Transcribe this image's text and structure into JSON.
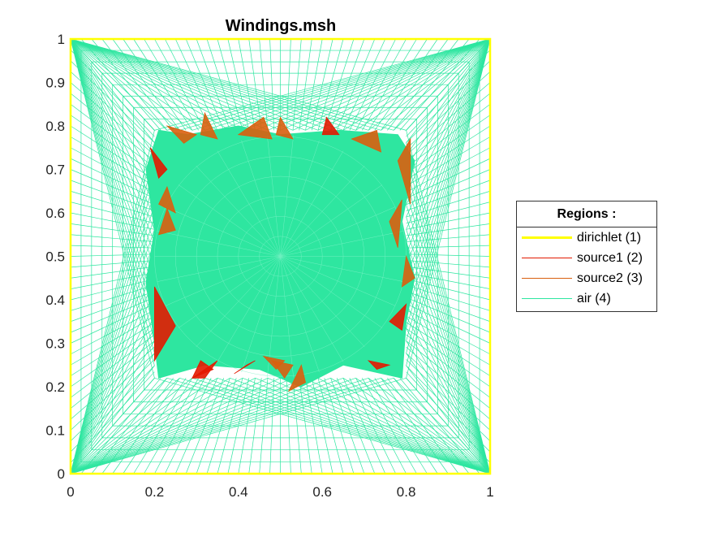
{
  "chart_data": {
    "type": "mesh",
    "title": "Windings.msh",
    "xlim": [
      0,
      1
    ],
    "ylim": [
      0,
      1
    ],
    "x_ticks": [
      "0",
      "0.2",
      "0.4",
      "0.6",
      "0.8",
      "1"
    ],
    "y_ticks": [
      "0",
      "0.1",
      "0.2",
      "0.3",
      "0.4",
      "0.5",
      "0.6",
      "0.7",
      "0.8",
      "0.9",
      "1"
    ],
    "legend": {
      "title": "Regions :",
      "placement": "right",
      "items": [
        {
          "label": "dirichlet (1)",
          "color": "#ffff00"
        },
        {
          "label": "source1 (2)",
          "color": "#e31a00"
        },
        {
          "label": "source2 (3)",
          "color": "#d95f0e"
        },
        {
          "label": "air (4)",
          "color": "#2ee6a0"
        }
      ]
    },
    "regions": {
      "dirichlet": {
        "color": "#ffff00",
        "boundary": [
          [
            0,
            0
          ],
          [
            1,
            0
          ],
          [
            1,
            1
          ],
          [
            0,
            1
          ]
        ]
      },
      "inner_block": {
        "color": "#2ee6a0",
        "polygon": [
          [
            0.21,
            0.22
          ],
          [
            0.32,
            0.25
          ],
          [
            0.45,
            0.24
          ],
          [
            0.55,
            0.2
          ],
          [
            0.65,
            0.25
          ],
          [
            0.79,
            0.22
          ],
          [
            0.8,
            0.35
          ],
          [
            0.82,
            0.45
          ],
          [
            0.79,
            0.58
          ],
          [
            0.82,
            0.72
          ],
          [
            0.78,
            0.78
          ],
          [
            0.64,
            0.79
          ],
          [
            0.5,
            0.78
          ],
          [
            0.4,
            0.8
          ],
          [
            0.28,
            0.78
          ],
          [
            0.21,
            0.79
          ],
          [
            0.18,
            0.7
          ],
          [
            0.2,
            0.56
          ],
          [
            0.18,
            0.44
          ],
          [
            0.2,
            0.3
          ]
        ]
      },
      "source1": {
        "color": "#e31a00",
        "triangles": [
          [
            [
              0.19,
              0.75
            ],
            [
              0.21,
              0.68
            ],
            [
              0.23,
              0.7
            ]
          ],
          [
            [
              0.2,
              0.43
            ],
            [
              0.25,
              0.34
            ],
            [
              0.2,
              0.26
            ]
          ],
          [
            [
              0.29,
              0.22
            ],
            [
              0.31,
              0.26
            ],
            [
              0.34,
              0.24
            ]
          ],
          [
            [
              0.39,
              0.23
            ],
            [
              0.44,
              0.26
            ],
            [
              0.42,
              0.25
            ]
          ],
          [
            [
              0.6,
              0.78
            ],
            [
              0.61,
              0.82
            ],
            [
              0.64,
              0.78
            ]
          ],
          [
            [
              0.76,
              0.25
            ],
            [
              0.73,
              0.24
            ],
            [
              0.71,
              0.26
            ]
          ],
          [
            [
              0.8,
              0.39
            ],
            [
              0.79,
              0.33
            ],
            [
              0.76,
              0.35
            ]
          ],
          [
            [
              0.29,
              0.22
            ],
            [
              0.35,
              0.26
            ],
            [
              0.32,
              0.22
            ]
          ]
        ]
      },
      "source2": {
        "color": "#d95f0e",
        "triangles": [
          [
            [
              0.23,
              0.8
            ],
            [
              0.3,
              0.78
            ],
            [
              0.27,
              0.76
            ]
          ],
          [
            [
              0.31,
              0.78
            ],
            [
              0.32,
              0.83
            ],
            [
              0.35,
              0.77
            ]
          ],
          [
            [
              0.4,
              0.78
            ],
            [
              0.46,
              0.82
            ],
            [
              0.48,
              0.77
            ]
          ],
          [
            [
              0.5,
              0.82
            ],
            [
              0.53,
              0.77
            ],
            [
              0.49,
              0.78
            ]
          ],
          [
            [
              0.67,
              0.77
            ],
            [
              0.73,
              0.79
            ],
            [
              0.74,
              0.74
            ]
          ],
          [
            [
              0.78,
              0.72
            ],
            [
              0.81,
              0.77
            ],
            [
              0.81,
              0.62
            ]
          ],
          [
            [
              0.76,
              0.58
            ],
            [
              0.79,
              0.63
            ],
            [
              0.78,
              0.52
            ]
          ],
          [
            [
              0.8,
              0.5
            ],
            [
              0.82,
              0.45
            ],
            [
              0.79,
              0.43
            ]
          ],
          [
            [
              0.21,
              0.55
            ],
            [
              0.23,
              0.61
            ],
            [
              0.25,
              0.56
            ]
          ],
          [
            [
              0.21,
              0.62
            ],
            [
              0.25,
              0.6
            ],
            [
              0.23,
              0.66
            ]
          ],
          [
            [
              0.52,
              0.19
            ],
            [
              0.55,
              0.25
            ],
            [
              0.56,
              0.21
            ]
          ],
          [
            [
              0.48,
              0.26
            ],
            [
              0.53,
              0.25
            ],
            [
              0.51,
              0.22
            ]
          ],
          [
            [
              0.46,
              0.27
            ],
            [
              0.51,
              0.26
            ],
            [
              0.49,
              0.24
            ]
          ]
        ]
      }
    }
  }
}
